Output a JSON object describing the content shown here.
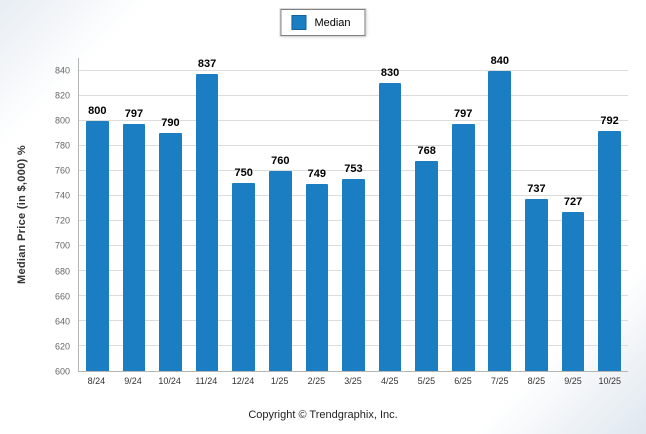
{
  "legend": {
    "label": "Median"
  },
  "footer": {
    "copyright": "Copyright © Trendgraphix, Inc."
  },
  "chart_data": {
    "type": "bar",
    "title": "",
    "xlabel": "",
    "ylabel": "Median Price (in $,000) %",
    "legend": [
      "Median"
    ],
    "legend_position": "top-center",
    "categories": [
      "8/24",
      "9/24",
      "10/24",
      "11/24",
      "12/24",
      "1/25",
      "2/25",
      "3/25",
      "4/25",
      "5/25",
      "6/25",
      "7/25",
      "8/25",
      "9/25",
      "10/25"
    ],
    "values": [
      800,
      797,
      790,
      837,
      750,
      760,
      749,
      753,
      830,
      768,
      797,
      840,
      737,
      727,
      792
    ],
    "ylim": [
      600,
      850
    ],
    "yticks": [
      600,
      620,
      640,
      660,
      680,
      700,
      720,
      740,
      760,
      780,
      800,
      820,
      840
    ],
    "grid": true,
    "value_labels": true,
    "bar_color": "#1b7ec2"
  }
}
